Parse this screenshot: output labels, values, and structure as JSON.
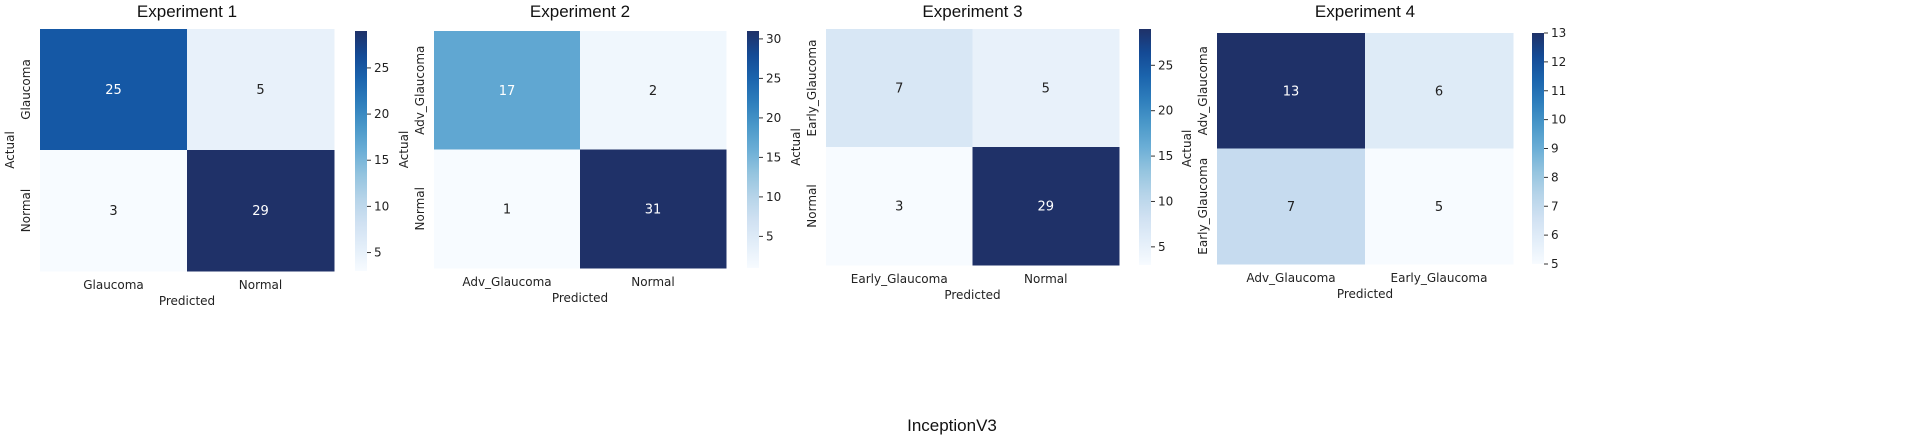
{
  "figure_title": "InceptionV3",
  "chart_data": [
    {
      "type": "heatmap",
      "title": "Experiment 1",
      "xlabel": "Predicted",
      "ylabel": "Actual",
      "x_categories": [
        "Glaucoma",
        "Normal"
      ],
      "y_categories": [
        "Glaucoma",
        "Normal"
      ],
      "values": [
        [
          25,
          5
        ],
        [
          3,
          29
        ]
      ],
      "colorbar": {
        "min": 3,
        "max": 29,
        "ticks": [
          5,
          10,
          15,
          20,
          25
        ]
      }
    },
    {
      "type": "heatmap",
      "title": "Experiment 2",
      "xlabel": "Predicted",
      "ylabel": "Actual",
      "x_categories": [
        "Adv_Glaucoma",
        "Normal"
      ],
      "y_categories": [
        "Adv_Glaucoma",
        "Normal"
      ],
      "values": [
        [
          17,
          2
        ],
        [
          1,
          31
        ]
      ],
      "colorbar": {
        "min": 1,
        "max": 31,
        "ticks": [
          5,
          10,
          15,
          20,
          25,
          30
        ]
      }
    },
    {
      "type": "heatmap",
      "title": "Experiment 3",
      "xlabel": "Predicted",
      "ylabel": "Actual",
      "x_categories": [
        "Early_Glaucoma",
        "Normal"
      ],
      "y_categories": [
        "Early_Glaucoma",
        "Normal"
      ],
      "values": [
        [
          7,
          5
        ],
        [
          3,
          29
        ]
      ],
      "colorbar": {
        "min": 3,
        "max": 29,
        "ticks": [
          5,
          10,
          15,
          20,
          25
        ]
      }
    },
    {
      "type": "heatmap",
      "title": "Experiment 4",
      "xlabel": "Predicted",
      "ylabel": "Actual",
      "x_categories": [
        "Adv_Glaucoma",
        "Early_Glaucoma"
      ],
      "y_categories": [
        "Adv_Glaucoma",
        "Early_Glaucoma"
      ],
      "values": [
        [
          13,
          6
        ],
        [
          7,
          5
        ]
      ],
      "colorbar": {
        "min": 5,
        "max": 13,
        "ticks": [
          5,
          6,
          7,
          8,
          9,
          10,
          11,
          12,
          13
        ]
      }
    }
  ],
  "colors": {
    "low": "#f7fbff",
    "high": "#1f3168"
  }
}
